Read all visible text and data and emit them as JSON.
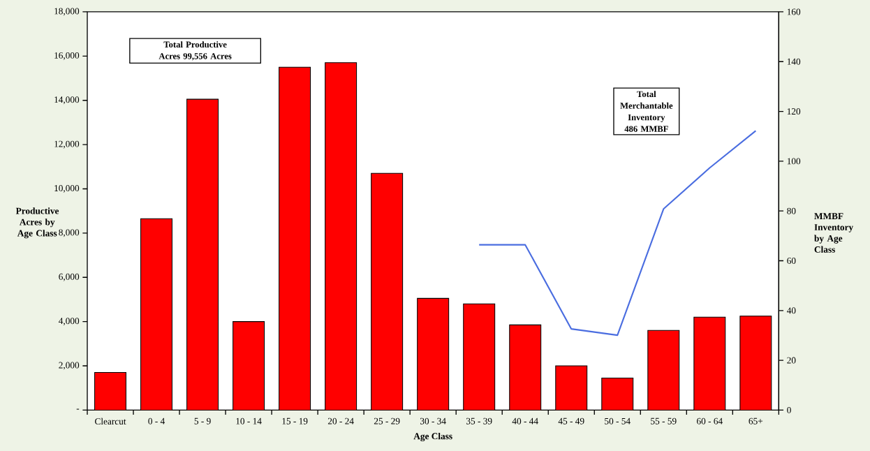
{
  "chart_data": {
    "type": "bar",
    "xlabel": "Age Class",
    "ylabel": "Productive Acres by Age Class",
    "y2label": "MMBF Inventory by Age Class",
    "categories": [
      "Clearcut",
      "0 - 4",
      "5 - 9",
      "10 - 14",
      "15 - 19",
      "20 - 24",
      "25 - 29",
      "30 - 34",
      "35 - 39",
      "40 - 44",
      "45 - 49",
      "50 - 54",
      "55 - 59",
      "60 - 64",
      "65+"
    ],
    "series": [
      {
        "color": "#ff0000",
        "values": [
          1700,
          8650,
          14050,
          4000,
          15500,
          15700,
          10700,
          5050,
          4800,
          3850,
          2000,
          1450,
          3600,
          4200,
          4250
        ]
      },
      {
        "type": "line",
        "axis": "y2",
        "color": "#4a6de0",
        "values": [
          null,
          null,
          null,
          null,
          null,
          null,
          null,
          null,
          66.4,
          66.4,
          32.6,
          30.1,
          80.8,
          97.3,
          112.2
        ]
      }
    ],
    "ylim": [
      0,
      18000
    ],
    "yticks": [
      {
        "value": 0,
        "label": "-"
      },
      {
        "value": 2000,
        "label": "2,000"
      },
      {
        "value": 4000,
        "label": "4,000"
      },
      {
        "value": 6000,
        "label": "6,000"
      },
      {
        "value": 8000,
        "label": "8,000"
      },
      {
        "value": 10000,
        "label": "10,000"
      },
      {
        "value": 12000,
        "label": "12,000"
      },
      {
        "value": 14000,
        "label": "14,000"
      },
      {
        "value": 16000,
        "label": "16,000"
      },
      {
        "value": 18000,
        "label": "18,000"
      }
    ],
    "y2lim": [
      0,
      160
    ],
    "y2ticks": [
      0,
      20,
      40,
      60,
      80,
      100,
      120,
      140,
      160
    ],
    "annotations": [
      "Total Productive Acres 99,556 Acres",
      "Total Merchantable Inventory 486 MMBF"
    ]
  }
}
